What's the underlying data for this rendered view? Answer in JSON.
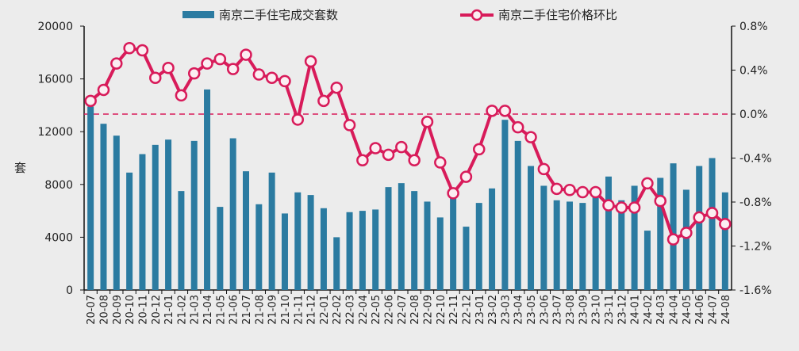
{
  "chart_data": {
    "type": "bar+line",
    "title": "",
    "ylabel_left": "套",
    "ylim_left": [
      0,
      20000
    ],
    "yticks_left": [
      "0",
      "4000",
      "8000",
      "12000",
      "16000",
      "20000"
    ],
    "ylim_right": [
      -1.6,
      0.8
    ],
    "yticks_right": [
      "-1.6%",
      "-1.2%",
      "-0.8%",
      "-0.4%",
      "0.0%",
      "0.4%",
      "0.8%"
    ],
    "legend_position": "top",
    "grid": false,
    "reference_line": {
      "value": 0,
      "axis": "right",
      "style": "dashed"
    },
    "categories": [
      "20-07",
      "20-08",
      "20-09",
      "20-10",
      "20-11",
      "20-12",
      "21-01",
      "21-02",
      "21-03",
      "21-04",
      "21-05",
      "21-06",
      "21-07",
      "21-08",
      "21-09",
      "21-10",
      "21-11",
      "21-12",
      "22-01",
      "22-02",
      "22-03",
      "22-04",
      "22-05",
      "22-06",
      "22-07",
      "22-08",
      "22-09",
      "22-10",
      "22-11",
      "22-12",
      "23-01",
      "23-02",
      "23-03",
      "23-04",
      "23-05",
      "23-06",
      "23-07",
      "23-08",
      "23-09",
      "23-10",
      "23-11",
      "23-12",
      "24-01",
      "24-02",
      "24-03",
      "24-04",
      "24-05",
      "24-06",
      "24-07",
      "24-08"
    ],
    "series": [
      {
        "name": "南京二手住宅成交套数",
        "type": "bar",
        "axis": "left",
        "color": "#2b7ba1",
        "values": [
          13900,
          12600,
          11700,
          8900,
          10300,
          11000,
          11400,
          7500,
          11300,
          15200,
          6300,
          11500,
          9000,
          6500,
          8900,
          5800,
          7400,
          7200,
          6200,
          4000,
          5900,
          6000,
          6100,
          7800,
          8100,
          7500,
          6700,
          5500,
          7000,
          4800,
          6600,
          7700,
          12900,
          11300,
          9400,
          7900,
          6800,
          6700,
          6600,
          7100,
          8600,
          6800,
          7900,
          4500,
          8500,
          9600,
          7600,
          9400,
          10000,
          7400
        ]
      },
      {
        "name": "南京二手住宅价格环比",
        "type": "line",
        "axis": "right",
        "unit": "%",
        "color": "#d81b5a",
        "values": [
          0.12,
          0.22,
          0.46,
          0.6,
          0.58,
          0.33,
          0.42,
          0.17,
          0.37,
          0.46,
          0.5,
          0.41,
          0.54,
          0.36,
          0.33,
          0.3,
          -0.05,
          0.48,
          0.12,
          0.24,
          -0.1,
          -0.42,
          -0.31,
          -0.37,
          -0.3,
          -0.42,
          -0.07,
          -0.44,
          -0.72,
          -0.57,
          -0.32,
          0.03,
          0.03,
          -0.12,
          -0.21,
          -0.5,
          -0.68,
          -0.69,
          -0.71,
          -0.71,
          -0.83,
          -0.85,
          -0.85,
          -0.63,
          -0.79,
          -1.14,
          -1.08,
          -0.94,
          -0.9,
          -1.0
        ]
      }
    ]
  }
}
